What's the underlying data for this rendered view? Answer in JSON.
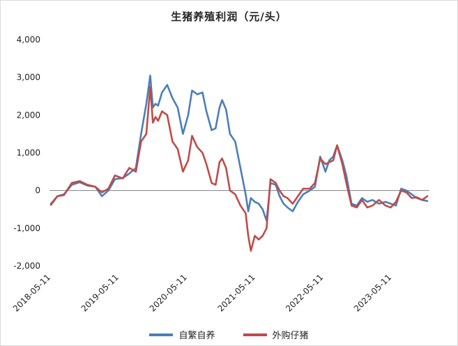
{
  "chart_data": {
    "type": "line",
    "title": "生猪养殖利润（元/头）",
    "xlabel": "",
    "ylabel": "",
    "ylim": [
      -2000,
      4000
    ],
    "yticks": [
      -2000,
      -1000,
      0,
      1000,
      2000,
      3000,
      4000
    ],
    "ytick_labels": [
      "-2,000",
      "-1,000",
      "0",
      "1,000",
      "2,000",
      "3,000",
      "4,000"
    ],
    "xticks": [
      "2018-05-11",
      "2019-05-11",
      "2020-05-11",
      "2021-05-11",
      "2022-05-11",
      "2023-05-11"
    ],
    "legend_position": "bottom",
    "grid": false,
    "series": [
      {
        "name": "自繁自养",
        "color": "#4a7ebb",
        "points": [
          [
            "2018-05-11",
            -350
          ],
          [
            "2018-06-15",
            -150
          ],
          [
            "2018-07-20",
            -100
          ],
          [
            "2018-08-31",
            150
          ],
          [
            "2018-10-12",
            220
          ],
          [
            "2018-11-23",
            130
          ],
          [
            "2019-01-04",
            100
          ],
          [
            "2019-02-08",
            -150
          ],
          [
            "2019-03-15",
            0
          ],
          [
            "2019-04-19",
            300
          ],
          [
            "2019-05-31",
            330
          ],
          [
            "2019-07-05",
            450
          ],
          [
            "2019-08-09",
            600
          ],
          [
            "2019-09-06",
            1500
          ],
          [
            "2019-10-04",
            2300
          ],
          [
            "2019-10-25",
            3050
          ],
          [
            "2019-11-08",
            2200
          ],
          [
            "2019-11-22",
            2300
          ],
          [
            "2019-12-06",
            2250
          ],
          [
            "2019-12-27",
            2600
          ],
          [
            "2020-01-24",
            2800
          ],
          [
            "2020-02-21",
            2450
          ],
          [
            "2020-03-20",
            2200
          ],
          [
            "2020-04-17",
            1500
          ],
          [
            "2020-05-15",
            2000
          ],
          [
            "2020-06-05",
            2650
          ],
          [
            "2020-07-03",
            2550
          ],
          [
            "2020-07-31",
            2600
          ],
          [
            "2020-08-21",
            2100
          ],
          [
            "2020-09-18",
            1600
          ],
          [
            "2020-10-09",
            1650
          ],
          [
            "2020-10-30",
            2200
          ],
          [
            "2020-11-13",
            2400
          ],
          [
            "2020-12-04",
            2150
          ],
          [
            "2020-12-25",
            1500
          ],
          [
            "2021-01-22",
            1300
          ],
          [
            "2021-02-19",
            600
          ],
          [
            "2021-03-19",
            -100
          ],
          [
            "2021-04-02",
            -550
          ],
          [
            "2021-04-16",
            -200
          ],
          [
            "2021-05-07",
            -300
          ],
          [
            "2021-05-28",
            -350
          ],
          [
            "2021-06-18",
            -500
          ],
          [
            "2021-07-09",
            -800
          ],
          [
            "2021-07-30",
            200
          ],
          [
            "2021-08-27",
            150
          ],
          [
            "2021-09-17",
            -150
          ],
          [
            "2021-10-08",
            -350
          ],
          [
            "2021-10-29",
            -450
          ],
          [
            "2021-11-26",
            -550
          ],
          [
            "2021-12-24",
            -300
          ],
          [
            "2022-01-21",
            -100
          ],
          [
            "2022-02-25",
            0
          ],
          [
            "2022-03-25",
            100
          ],
          [
            "2022-04-22",
            900
          ],
          [
            "2022-05-20",
            500
          ],
          [
            "2022-06-10",
            800
          ],
          [
            "2022-07-01",
            900
          ],
          [
            "2022-07-22",
            1200
          ],
          [
            "2022-08-19",
            800
          ],
          [
            "2022-09-09",
            400
          ],
          [
            "2022-10-07",
            -350
          ],
          [
            "2022-11-04",
            -400
          ],
          [
            "2022-12-02",
            -200
          ],
          [
            "2022-12-30",
            -300
          ],
          [
            "2023-01-27",
            -250
          ],
          [
            "2023-03-03",
            -350
          ],
          [
            "2023-04-07",
            -300
          ],
          [
            "2023-05-05",
            -350
          ],
          [
            "2023-06-02",
            -400
          ],
          [
            "2023-06-30",
            50
          ],
          [
            "2023-07-28",
            0
          ],
          [
            "2023-08-25",
            -100
          ],
          [
            "2023-09-22",
            -200
          ],
          [
            "2023-10-20",
            -250
          ],
          [
            "2023-11-17",
            -280
          ]
        ]
      },
      {
        "name": "外购仔猪",
        "color": "#be4b48",
        "points": [
          [
            "2018-05-11",
            -380
          ],
          [
            "2018-06-15",
            -150
          ],
          [
            "2018-07-20",
            -120
          ],
          [
            "2018-08-31",
            200
          ],
          [
            "2018-10-12",
            250
          ],
          [
            "2018-11-23",
            150
          ],
          [
            "2019-01-04",
            100
          ],
          [
            "2019-02-08",
            -50
          ],
          [
            "2019-03-15",
            50
          ],
          [
            "2019-04-19",
            400
          ],
          [
            "2019-05-31",
            320
          ],
          [
            "2019-07-05",
            600
          ],
          [
            "2019-08-09",
            500
          ],
          [
            "2019-09-06",
            1300
          ],
          [
            "2019-10-04",
            1500
          ],
          [
            "2019-10-25",
            2750
          ],
          [
            "2019-11-08",
            1800
          ],
          [
            "2019-11-22",
            1950
          ],
          [
            "2019-12-06",
            1850
          ],
          [
            "2019-12-27",
            2100
          ],
          [
            "2020-01-24",
            2000
          ],
          [
            "2020-02-21",
            1300
          ],
          [
            "2020-03-20",
            1100
          ],
          [
            "2020-04-17",
            500
          ],
          [
            "2020-05-15",
            800
          ],
          [
            "2020-06-05",
            1450
          ],
          [
            "2020-07-03",
            1150
          ],
          [
            "2020-07-31",
            1000
          ],
          [
            "2020-08-21",
            700
          ],
          [
            "2020-09-18",
            200
          ],
          [
            "2020-10-09",
            150
          ],
          [
            "2020-10-30",
            750
          ],
          [
            "2020-11-13",
            850
          ],
          [
            "2020-12-04",
            600
          ],
          [
            "2020-12-25",
            0
          ],
          [
            "2021-01-22",
            -100
          ],
          [
            "2021-02-19",
            -400
          ],
          [
            "2021-03-19",
            -600
          ],
          [
            "2021-04-02",
            -1200
          ],
          [
            "2021-04-16",
            -1600
          ],
          [
            "2021-05-07",
            -1200
          ],
          [
            "2021-05-28",
            -1300
          ],
          [
            "2021-06-18",
            -1200
          ],
          [
            "2021-07-09",
            -1000
          ],
          [
            "2021-07-30",
            300
          ],
          [
            "2021-08-27",
            200
          ],
          [
            "2021-09-17",
            0
          ],
          [
            "2021-10-08",
            -150
          ],
          [
            "2021-10-29",
            -200
          ],
          [
            "2021-11-26",
            -350
          ],
          [
            "2021-12-24",
            -150
          ],
          [
            "2022-01-21",
            50
          ],
          [
            "2022-02-25",
            50
          ],
          [
            "2022-03-25",
            200
          ],
          [
            "2022-04-22",
            850
          ],
          [
            "2022-05-20",
            700
          ],
          [
            "2022-06-10",
            750
          ],
          [
            "2022-07-01",
            800
          ],
          [
            "2022-07-22",
            1200
          ],
          [
            "2022-08-19",
            700
          ],
          [
            "2022-09-09",
            200
          ],
          [
            "2022-10-07",
            -400
          ],
          [
            "2022-11-04",
            -450
          ],
          [
            "2022-12-02",
            -250
          ],
          [
            "2022-12-30",
            -450
          ],
          [
            "2023-01-27",
            -400
          ],
          [
            "2023-03-03",
            -250
          ],
          [
            "2023-04-07",
            -400
          ],
          [
            "2023-05-05",
            -450
          ],
          [
            "2023-06-02",
            -300
          ],
          [
            "2023-06-30",
            0
          ],
          [
            "2023-07-28",
            -50
          ],
          [
            "2023-08-25",
            -200
          ],
          [
            "2023-09-22",
            -180
          ],
          [
            "2023-10-20",
            -250
          ],
          [
            "2023-11-17",
            -150
          ]
        ]
      }
    ]
  }
}
